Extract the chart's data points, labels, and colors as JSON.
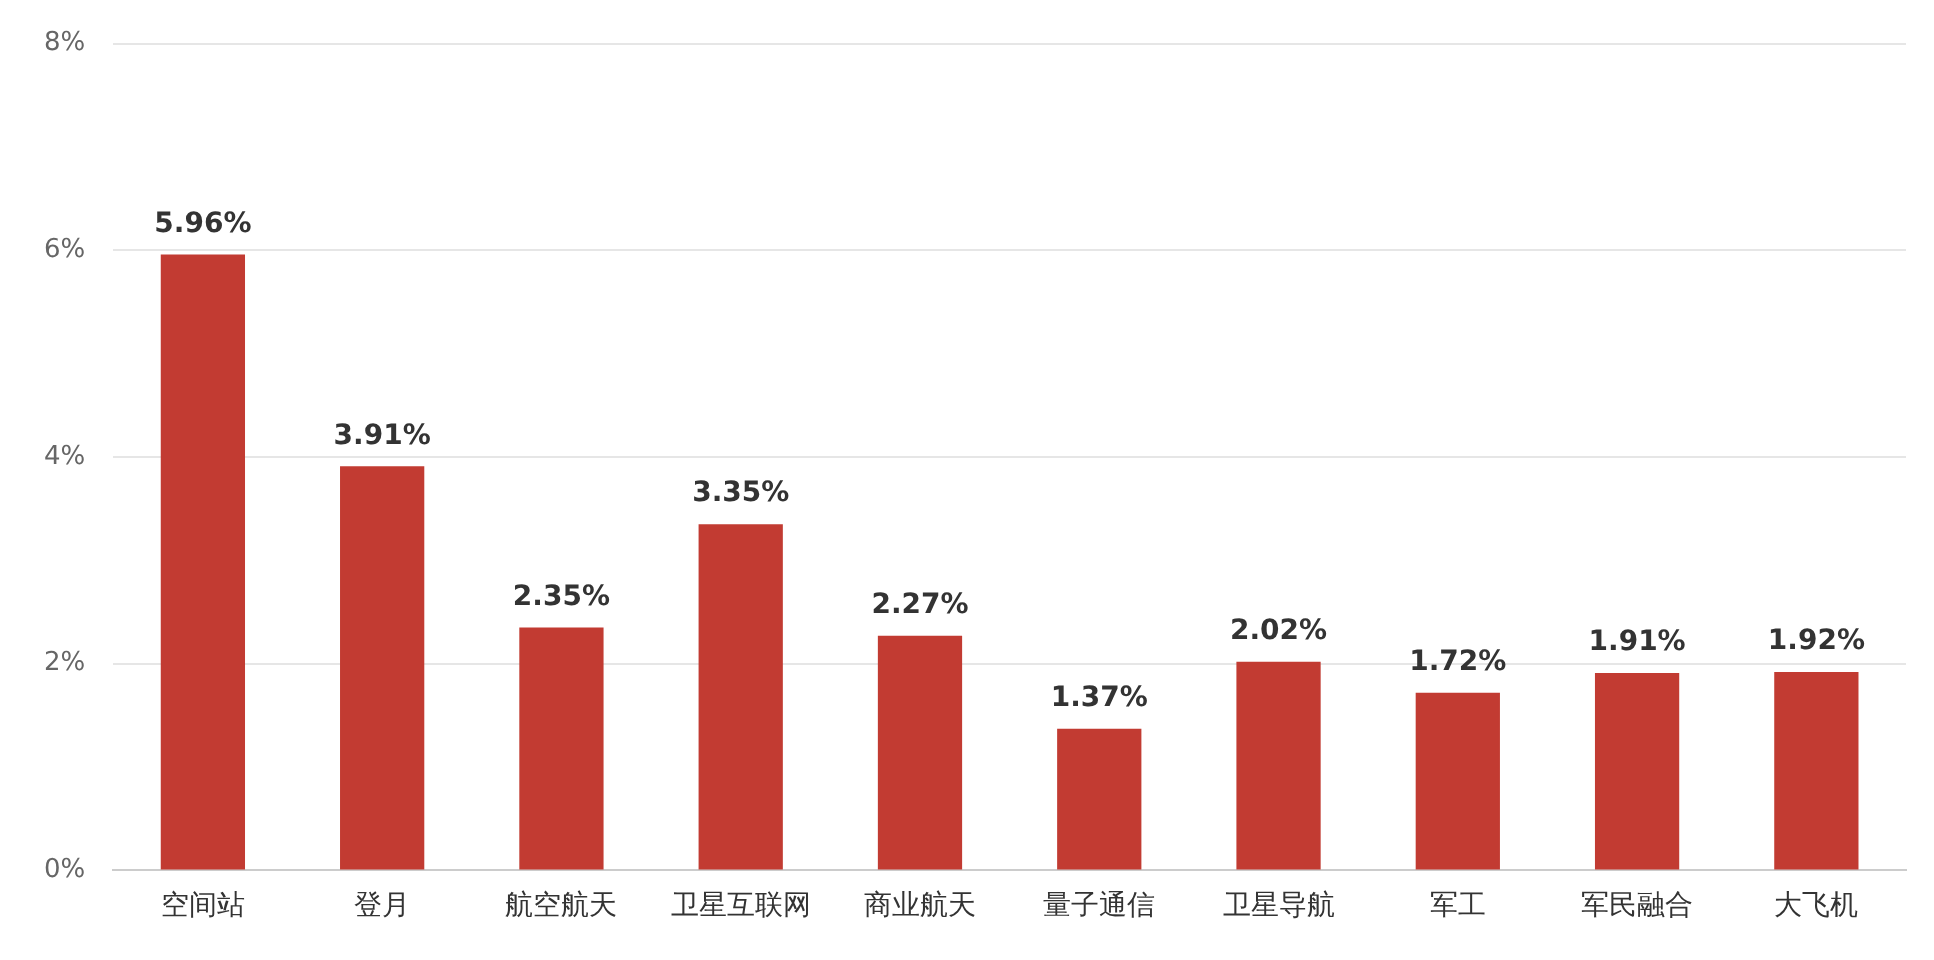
{
  "chart_data": {
    "type": "bar",
    "categories": [
      "空间站",
      "登月",
      "航空航天",
      "卫星互联网",
      "商业航天",
      "量子通信",
      "卫星导航",
      "军工",
      "军民融合",
      "大飞机"
    ],
    "values": [
      5.96,
      3.91,
      2.35,
      3.35,
      2.27,
      1.37,
      2.02,
      1.72,
      1.91,
      1.92
    ],
    "value_labels": [
      "5.96%",
      "3.91%",
      "2.35%",
      "3.35%",
      "2.27%",
      "1.37%",
      "2.02%",
      "1.72%",
      "1.91%",
      "1.92%"
    ],
    "color": "#c23b32",
    "ylim": [
      0,
      8
    ],
    "yticks": [
      {
        "value": 0,
        "label": "0%"
      },
      {
        "value": 2,
        "label": "2%"
      },
      {
        "value": 4,
        "label": "4%"
      },
      {
        "value": 6,
        "label": "6%"
      },
      {
        "value": 8,
        "label": "8%"
      }
    ],
    "grid": "y",
    "legend": false
  }
}
